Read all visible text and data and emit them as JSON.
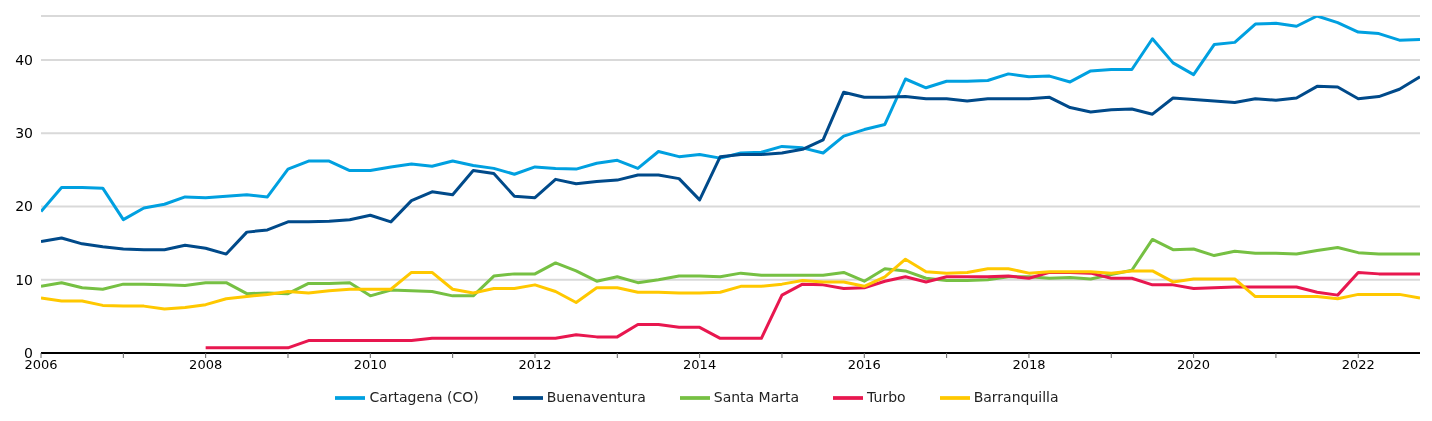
{
  "chart_data": {
    "type": "line",
    "x": [
      2006,
      2006.25,
      2006.5,
      2006.75,
      2007,
      2007.25,
      2007.5,
      2007.75,
      2008,
      2008.25,
      2008.5,
      2008.75,
      2009,
      2009.25,
      2009.5,
      2009.75,
      2010,
      2010.25,
      2010.5,
      2010.75,
      2011,
      2011.25,
      2011.5,
      2011.75,
      2012,
      2012.25,
      2012.5,
      2012.75,
      2013,
      2013.25,
      2013.5,
      2013.75,
      2014,
      2014.25,
      2014.5,
      2014.75,
      2015,
      2015.25,
      2015.5,
      2015.75,
      2016,
      2016.25,
      2016.5,
      2016.75,
      2017,
      2017.25,
      2017.5,
      2017.75,
      2018,
      2018.25,
      2018.5,
      2018.75,
      2019,
      2019.25,
      2019.5,
      2019.75,
      2020,
      2020.25,
      2020.5,
      2020.75,
      2021,
      2021.25,
      2021.5,
      2021.75,
      2022,
      2022.25,
      2022.5,
      2022.75
    ],
    "series": [
      {
        "name": "Cartagena (CO)",
        "color": "#00a0e0",
        "values": [
          19.3,
          22.6,
          22.6,
          22.5,
          18.2,
          19.8,
          20.3,
          21.3,
          21.2,
          21.4,
          21.6,
          21.3,
          25.1,
          26.2,
          26.2,
          24.9,
          24.9,
          25.4,
          25.8,
          25.5,
          26.2,
          25.6,
          25.2,
          24.4,
          25.4,
          25.2,
          25.1,
          25.9,
          26.3,
          25.2,
          27.5,
          26.8,
          27.1,
          26.6,
          27.3,
          27.4,
          28.2,
          28.0,
          27.3,
          29.6,
          30.5,
          31.2,
          37.4,
          36.2,
          37.1,
          37.1,
          37.2,
          38.1,
          37.7,
          37.8,
          37.0,
          38.5,
          38.7,
          38.7,
          42.9,
          39.6,
          38.0,
          42.1,
          42.4,
          44.9,
          45.0,
          44.6,
          46.0,
          45.1,
          43.8,
          43.6,
          42.7,
          42.8
        ]
      },
      {
        "name": "Buenaventura",
        "color": "#004a8a",
        "values": [
          15.2,
          15.7,
          14.9,
          14.5,
          14.2,
          14.1,
          14.1,
          14.7,
          14.3,
          13.5,
          16.5,
          16.8,
          17.9,
          17.9,
          18.0,
          18.2,
          18.8,
          17.9,
          20.8,
          22.0,
          21.6,
          24.9,
          24.5,
          21.4,
          21.2,
          23.7,
          23.1,
          23.4,
          23.6,
          24.3,
          24.3,
          23.8,
          20.9,
          26.8,
          27.1,
          27.1,
          27.3,
          27.8,
          29.1,
          35.6,
          34.9,
          34.9,
          35.0,
          34.7,
          34.7,
          34.4,
          34.7,
          34.7,
          34.7,
          34.9,
          33.5,
          32.9,
          33.2,
          33.3,
          32.6,
          34.8,
          34.6,
          34.4,
          34.2,
          34.7,
          34.5,
          34.8,
          36.4,
          36.3,
          34.7,
          35.0,
          36.0,
          37.7
        ]
      },
      {
        "name": "Santa Marta",
        "color": "#76c043",
        "values": [
          9.1,
          9.6,
          8.9,
          8.7,
          9.4,
          9.4,
          9.3,
          9.2,
          9.6,
          9.6,
          8.1,
          8.2,
          8.1,
          9.5,
          9.5,
          9.6,
          7.8,
          8.6,
          8.5,
          8.4,
          7.8,
          7.8,
          10.5,
          10.8,
          10.8,
          12.3,
          11.2,
          9.8,
          10.4,
          9.6,
          10.0,
          10.5,
          10.5,
          10.4,
          10.9,
          10.6,
          10.6,
          10.6,
          10.6,
          11.0,
          9.8,
          11.5,
          11.2,
          10.2,
          9.9,
          9.9,
          10.0,
          10.4,
          10.4,
          10.2,
          10.3,
          10.1,
          10.7,
          11.3,
          15.5,
          14.1,
          14.2,
          13.3,
          13.9,
          13.6,
          13.6,
          13.5,
          14.0,
          14.4,
          13.7,
          13.5,
          13.5,
          13.5
        ]
      },
      {
        "name": "Turbo",
        "color": "#e8174f",
        "values": [
          null,
          null,
          null,
          null,
          null,
          null,
          null,
          null,
          0.7,
          0.7,
          0.7,
          0.7,
          0.7,
          1.7,
          1.7,
          1.7,
          1.7,
          1.7,
          1.7,
          2.0,
          2.0,
          2.0,
          2.0,
          2.0,
          2.0,
          2.0,
          2.5,
          2.2,
          2.2,
          3.9,
          3.9,
          3.5,
          3.5,
          2.0,
          2.0,
          2.0,
          7.9,
          9.4,
          9.3,
          8.8,
          8.9,
          9.8,
          10.4,
          9.7,
          10.4,
          10.4,
          10.4,
          10.5,
          10.2,
          11.0,
          11.0,
          10.9,
          10.2,
          10.2,
          9.3,
          9.3,
          8.8,
          8.9,
          9.0,
          9.0,
          9.0,
          9.0,
          8.3,
          7.9,
          11.0,
          10.8,
          10.8,
          10.8
        ]
      },
      {
        "name": "Barranquilla",
        "color": "#ffc800",
        "values": [
          7.5,
          7.1,
          7.1,
          6.5,
          6.4,
          6.4,
          6.0,
          6.2,
          6.6,
          7.4,
          7.7,
          8.0,
          8.4,
          8.2,
          8.5,
          8.7,
          8.7,
          8.7,
          11.0,
          11.0,
          8.7,
          8.2,
          8.8,
          8.8,
          9.3,
          8.4,
          6.9,
          8.9,
          8.9,
          8.3,
          8.3,
          8.2,
          8.2,
          8.3,
          9.1,
          9.1,
          9.4,
          9.9,
          9.7,
          9.7,
          9.1,
          10.4,
          12.8,
          11.1,
          10.9,
          11.0,
          11.5,
          11.5,
          10.9,
          11.1,
          11.1,
          11.1,
          10.9,
          11.2,
          11.2,
          9.7,
          10.1,
          10.1,
          10.1,
          7.7,
          7.7,
          7.7,
          7.7,
          7.4,
          8.0,
          8.0,
          8.0,
          7.5
        ]
      }
    ],
    "xlim": [
      2006,
      2022.75
    ],
    "xticks": [
      2006,
      {
        "value": 2007,
        "label": null
      },
      2008,
      {
        "value": 2009,
        "label": null
      },
      2010,
      {
        "value": 2011,
        "label": null
      },
      2012,
      {
        "value": 2013,
        "label": null
      },
      2014,
      {
        "value": 2015,
        "label": null
      },
      2016,
      {
        "value": 2017,
        "label": null
      },
      2018,
      {
        "value": 2019,
        "label": null
      },
      2020,
      {
        "value": 2021,
        "label": null
      },
      2022
    ],
    "ylim": [
      0,
      46
    ],
    "yticks": [
      0,
      10,
      20,
      30,
      40
    ],
    "grid": "y",
    "legend": "bottom",
    "marker": "none",
    "line_style": "solid"
  }
}
